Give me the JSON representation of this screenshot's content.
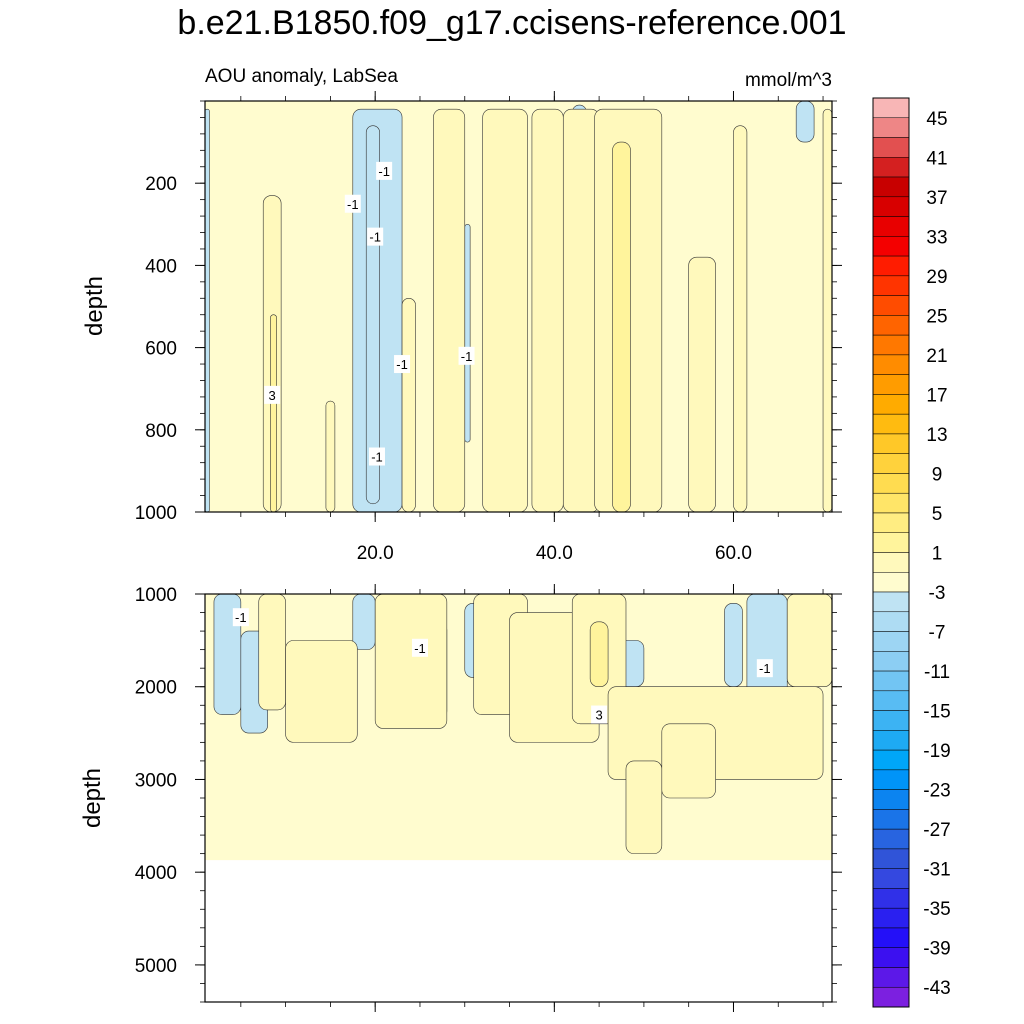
{
  "chart_data": {
    "type": "heatmap",
    "title": "b.e21.B1850.f09_g17.ccisens-reference.001",
    "subtitle_left": "AOU anomaly, LabSea",
    "subtitle_right": "mmol/m^3",
    "xlabel": "",
    "ylabel": "depth",
    "xlim": [
      1,
      71
    ],
    "x_ticks": [
      20,
      40,
      60
    ],
    "x_tick_labels": [
      "20.0",
      "40.0",
      "60.0"
    ],
    "panels": [
      {
        "name": "upper",
        "ylim": [
          0,
          1000
        ],
        "y_ticks": [
          200,
          400,
          600,
          800,
          1000
        ],
        "y_tick_labels": [
          "200",
          "400",
          "600",
          "800",
          "1000"
        ],
        "background_level": 1,
        "contour_labels": [
          {
            "text": "-1",
            "x": 21.0,
            "y": 170
          },
          {
            "text": "-1",
            "x": 17.5,
            "y": 250
          },
          {
            "text": "-1",
            "x": 20.0,
            "y": 330
          },
          {
            "text": "-1",
            "x": 23.0,
            "y": 640
          },
          {
            "text": "-1",
            "x": 30.2,
            "y": 620
          },
          {
            "text": "3",
            "x": 8.5,
            "y": 715
          },
          {
            "text": "-1",
            "x": 20.2,
            "y": 865
          }
        ]
      },
      {
        "name": "lower",
        "ylim": [
          1000,
          5400
        ],
        "y_ticks": [
          1000,
          2000,
          3000,
          4000,
          5000
        ],
        "y_tick_labels": [
          "1000",
          "2000",
          "3000",
          "4000",
          "5000"
        ],
        "data_bottom": 3870,
        "background_level": 1,
        "contour_labels": [
          {
            "text": "-1",
            "x": 5.0,
            "y": 1250
          },
          {
            "text": "-1",
            "x": 25.0,
            "y": 1580
          },
          {
            "text": "3",
            "x": 45.0,
            "y": 2300
          },
          {
            "text": "-1",
            "x": 63.5,
            "y": 1800
          }
        ]
      }
    ],
    "colorbar": {
      "levels": [
        -45,
        -43,
        -41,
        -39,
        -37,
        -35,
        -33,
        -31,
        -29,
        -27,
        -25,
        -23,
        -21,
        -19,
        -17,
        -15,
        -13,
        -11,
        -9,
        -7,
        -5,
        -3,
        -1,
        1,
        3,
        5,
        7,
        9,
        11,
        13,
        15,
        17,
        19,
        21,
        23,
        25,
        27,
        29,
        31,
        33,
        35,
        37,
        39,
        41,
        43,
        45
      ],
      "tick_labels": [
        "45",
        "41",
        "37",
        "33",
        "29",
        "25",
        "21",
        "17",
        "13",
        "9",
        "5",
        "1",
        "-3",
        "-7",
        "-11",
        "-15",
        "-19",
        "-23",
        "-27",
        "-31",
        "-35",
        "-39",
        "-43"
      ],
      "colors_top_to_bottom": [
        "#f8b6b6",
        "#ee8686",
        "#e25050",
        "#d42020",
        "#c80000",
        "#d80000",
        "#e80000",
        "#f40000",
        "#ff1c00",
        "#ff3400",
        "#ff4c00",
        "#ff6400",
        "#ff7800",
        "#ff8c00",
        "#ff9c00",
        "#ffab00",
        "#ffbb10",
        "#ffc828",
        "#ffd23c",
        "#ffdc50",
        "#ffe568",
        "#ffed82",
        "#fff49c",
        "#fff9bc",
        "#fffccf",
        "#bfe3f3",
        "#aedcf3",
        "#9dd5f3",
        "#8ccef3",
        "#72c5f3",
        "#58bcf3",
        "#3cb3f3",
        "#1eaaf3",
        "#00a6f8",
        "#0094f8",
        "#0c84f0",
        "#1a74e8",
        "#2864e0",
        "#3054d8",
        "#3448e0",
        "#3030e8",
        "#2a20f0",
        "#2410f8",
        "#3c10f0",
        "#5c18e8",
        "#7c20e0"
      ]
    }
  }
}
